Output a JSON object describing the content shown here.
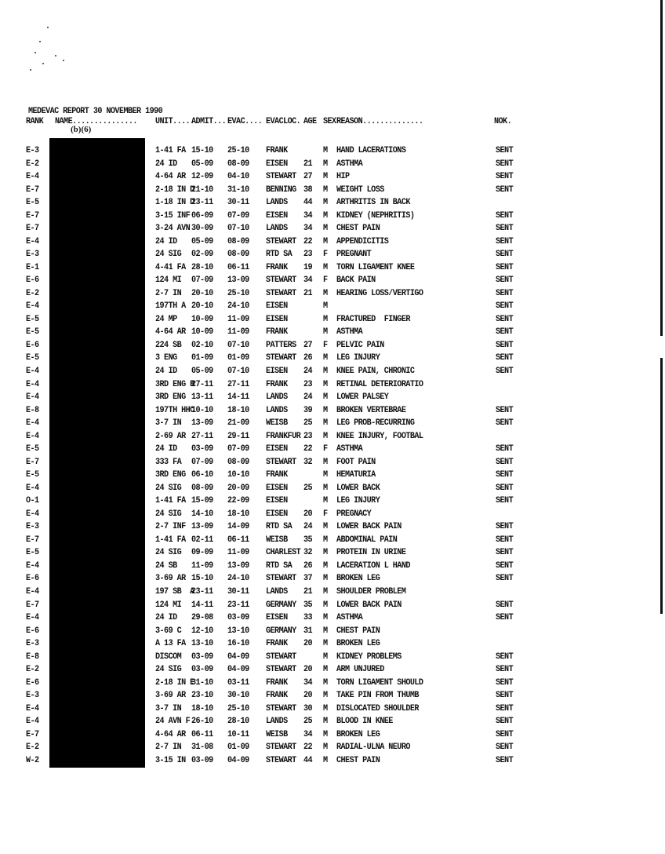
{
  "report_title": "MEDEVAC REPORT 30 NOVEMBER 1990",
  "redaction_label": "(b)(6)",
  "columns": [
    "RANK",
    "NAME...............",
    "UNIT......",
    "ADMIT...",
    "EVAC....",
    "EVACLOC.",
    "AGE",
    "SEX",
    "REASON..............",
    "NOK."
  ],
  "rows": [
    [
      "E-3",
      "1-41 FA",
      "15-10",
      "25-10",
      "FRANK",
      "",
      "M",
      "HAND LACERATIONS",
      "SENT"
    ],
    [
      "E-2",
      "24 ID",
      "05-09",
      "08-09",
      "EISEN",
      "21",
      "M",
      "ASTHMA",
      "SENT"
    ],
    [
      "E-4",
      "4-64 AR",
      "12-09",
      "04-10",
      "STEWART",
      "27",
      "M",
      "HIP",
      "SENT"
    ],
    [
      "E-7",
      "2-18 IN D",
      "21-10",
      "31-10",
      "BENNING",
      "38",
      "M",
      "WEIGHT LOSS",
      "SENT"
    ],
    [
      "E-5",
      "1-18 IN D",
      "23-11",
      "30-11",
      "LANDS",
      "44",
      "M",
      "ARTHRITIS IN BACK",
      ""
    ],
    [
      "E-7",
      "3-15 INF",
      "06-09",
      "07-09",
      "EISEN",
      "34",
      "M",
      "KIDNEY (NEPHRITIS)",
      "SENT"
    ],
    [
      "E-7",
      "3-24 AVN",
      "30-09",
      "07-10",
      "LANDS",
      "34",
      "M",
      "CHEST PAIN",
      "SENT"
    ],
    [
      "E-4",
      "24 ID",
      "05-09",
      "08-09",
      "STEWART",
      "22",
      "M",
      "APPENDICITIS",
      "SENT"
    ],
    [
      "E-3",
      "24 SIG",
      "02-09",
      "08-09",
      "RTD SA",
      "23",
      "F",
      "PREGNANT",
      "SENT"
    ],
    [
      "E-1",
      "4-41 FA",
      "28-10",
      "06-11",
      "FRANK",
      "19",
      "M",
      "TORN LIGAMENT KNEE",
      "SENT"
    ],
    [
      "E-6",
      "124 MI",
      "07-09",
      "13-09",
      "STEWART",
      "34",
      "F",
      "BACK PAIN",
      "SENT"
    ],
    [
      "E-2",
      "2-7 IN",
      "20-10",
      "25-10",
      "STEWART",
      "21",
      "M",
      "HEARING LOSS/VERTIGO",
      "SENT"
    ],
    [
      "E-4",
      "197TH A",
      "20-10",
      "24-10",
      "EISEN",
      "",
      "M",
      "",
      "SENT"
    ],
    [
      "E-5",
      "24 MP",
      "10-09",
      "11-09",
      "EISEN",
      "",
      "M",
      "FRACTURED  FINGER",
      "SENT"
    ],
    [
      "E-5",
      "4-64 AR",
      "10-09",
      "11-09",
      "FRANK",
      "",
      "M",
      "ASTHMA",
      "SENT"
    ],
    [
      "E-6",
      "224 SB",
      "02-10",
      "07-10",
      "PATTERS",
      "27",
      "F",
      "PELVIC PAIN",
      "SENT"
    ],
    [
      "E-5",
      "3 ENG",
      "01-09",
      "01-09",
      "STEWART",
      "26",
      "M",
      "LEG INJURY",
      "SENT"
    ],
    [
      "E-4",
      "24 ID",
      "05-09",
      "07-10",
      "EISEN",
      "24",
      "M",
      "KNEE PAIN, CHRONIC",
      "SENT"
    ],
    [
      "E-4",
      "3RD ENG B",
      "27-11",
      "27-11",
      "FRANK",
      "23",
      "M",
      "RETINAL DETERIORATIO",
      ""
    ],
    [
      "E-4",
      "3RD ENG",
      "13-11",
      "14-11",
      "LANDS",
      "24",
      "M",
      "LOWER PALSEY",
      ""
    ],
    [
      "E-8",
      "197TH HHC",
      "10-10",
      "18-10",
      "LANDS",
      "39",
      "M",
      "BROKEN VERTEBRAE",
      "SENT"
    ],
    [
      "E-4",
      "3-7 IN",
      "13-09",
      "21-09",
      "WEISB",
      "25",
      "M",
      "LEG PROB-RECURRING",
      "SENT"
    ],
    [
      "E-4",
      "2-69 AR",
      "27-11",
      "29-11",
      "FRANKFUR",
      "23",
      "M",
      "KNEE INJURY, FOOTBAL",
      ""
    ],
    [
      "E-5",
      "24 ID",
      "03-09",
      "07-09",
      "EISEN",
      "22",
      "F",
      "ASTHMA",
      "SENT"
    ],
    [
      "E-7",
      "333 FA",
      "07-09",
      "08-09",
      "STEWART",
      "32",
      "M",
      "FOOT PAIN",
      "SENT"
    ],
    [
      "E-5",
      "3RD ENG",
      "06-10",
      "10-10",
      "FRANK",
      "",
      "M",
      "HEMATURIA",
      "SENT"
    ],
    [
      "E-4",
      "24 SIG",
      "08-09",
      "20-09",
      "EISEN",
      "25",
      "M",
      "LOWER BACK",
      "SENT"
    ],
    [
      "O-1",
      "1-41 FA",
      "15-09",
      "22-09",
      "EISEN",
      "",
      "M",
      "LEG INJURY",
      "SENT"
    ],
    [
      "E-4",
      "24 SIG",
      "14-10",
      "18-10",
      "EISEN",
      "20",
      "F",
      "PREGNACY",
      ""
    ],
    [
      "E-3",
      "2-7 INF",
      "13-09",
      "14-09",
      "RTD SA",
      "24",
      "M",
      "LOWER BACK PAIN",
      "SENT"
    ],
    [
      "E-7",
      "1-41 FA",
      "02-11",
      "06-11",
      "WEISB",
      "35",
      "M",
      "ABDOMINAL PAIN",
      "SENT"
    ],
    [
      "E-5",
      "24 SIG",
      "09-09",
      "11-09",
      "CHARLEST",
      "32",
      "M",
      "PROTEIN IN URINE",
      "SENT"
    ],
    [
      "E-4",
      "24 SB",
      "11-09",
      "13-09",
      "RTD SA",
      "26",
      "M",
      "LACERATION L HAND",
      "SENT"
    ],
    [
      "E-6",
      "3-69 AR",
      "15-10",
      "24-10",
      "STEWART",
      "37",
      "M",
      "BROKEN LEG",
      "SENT"
    ],
    [
      "E-4",
      "197 SB  A",
      "23-11",
      "30-11",
      "LANDS",
      "21",
      "M",
      "SHOULDER PROBLEM",
      ""
    ],
    [
      "E-7",
      "124 MI",
      "14-11",
      "23-11",
      "GERMANY",
      "35",
      "M",
      "LOWER BACK PAIN",
      "SENT"
    ],
    [
      "E-4",
      "24 ID",
      "29-08",
      "03-09",
      "EISEN",
      "33",
      "M",
      "ASTHMA",
      "SENT"
    ],
    [
      "E-6",
      "3-69 C",
      "12-10",
      "13-10",
      "GERMANY",
      "31",
      "M",
      "CHEST PAIN",
      ""
    ],
    [
      "E-3",
      "A 13 FA",
      "13-10",
      "16-10",
      "FRANK",
      "20",
      "M",
      "BROKEN LEG",
      ""
    ],
    [
      "E-8",
      "DISCOM",
      "03-09",
      "04-09",
      "STEWART",
      "",
      "M",
      "KIDNEY PROBLEMS",
      "SENT"
    ],
    [
      "E-2",
      "24 SIG",
      "03-09",
      "04-09",
      "STEWART",
      "20",
      "M",
      "ARM UNJURED",
      "SENT"
    ],
    [
      "E-6",
      "2-18 IN E",
      "31-10",
      "03-11",
      "FRANK",
      "34",
      "M",
      "TORN LIGAMENT SHOULD",
      "SENT"
    ],
    [
      "E-3",
      "3-69 AR",
      "23-10",
      "30-10",
      "FRANK",
      "20",
      "M",
      "TAKE PIN FROM THUMB",
      "SENT"
    ],
    [
      "E-4",
      "3-7 IN",
      "18-10",
      "25-10",
      "STEWART",
      "30",
      "M",
      "DISLOCATED SHOULDER",
      "SENT"
    ],
    [
      "E-4",
      "24 AVN F",
      "26-10",
      "28-10",
      "LANDS",
      "25",
      "M",
      "BLOOD IN KNEE",
      "SENT"
    ],
    [
      "E-7",
      "4-64 AR",
      "06-11",
      "10-11",
      "WEISB",
      "34",
      "M",
      "BROKEN LEG",
      "SENT"
    ],
    [
      "E-2",
      "2-7 IN",
      "31-08",
      "01-09",
      "STEWART",
      "22",
      "M",
      "RADIAL-ULNA NEURO",
      "SENT"
    ],
    [
      "W-2",
      "3-15 IN",
      "03-09",
      "04-09",
      "STEWART",
      "44",
      "M",
      "CHEST PAIN",
      "SENT"
    ]
  ]
}
